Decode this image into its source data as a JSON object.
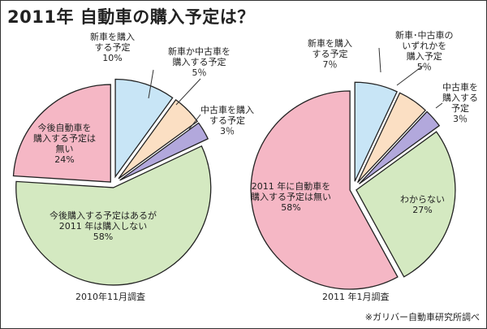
{
  "title": "2011年  自動車の購入予定は？",
  "source": "※ガリバー自動車研究所調べ",
  "colors": {
    "blue": "#c8e5f6",
    "peach": "#fbdfc3",
    "purple": "#b2a8dc",
    "green": "#d4e9c1",
    "pink": "#f5b7c5"
  },
  "chart_data": [
    {
      "type": "pie",
      "caption": "2010年11月調査",
      "slices": [
        {
          "label_lines": [
            "新車を購入",
            "する予定",
            "10%"
          ],
          "value": 10,
          "color": "blue"
        },
        {
          "label_lines": [
            "新車か中古車を",
            "購入する予定",
            "5％"
          ],
          "value": 5,
          "color": "peach"
        },
        {
          "label_lines": [
            "中古車を購入",
            "する予定",
            "3％"
          ],
          "value": 3,
          "color": "purple"
        },
        {
          "label_lines": [
            "今後購入する予定はあるが",
            "2011 年は購入しない",
            "58%"
          ],
          "value": 58,
          "color": "green"
        },
        {
          "label_lines": [
            "今後自動車を",
            "購入する予定は",
            "無い",
            "24%"
          ],
          "value": 24,
          "color": "pink"
        }
      ]
    },
    {
      "type": "pie",
      "caption": "2011 年1月調査",
      "slices": [
        {
          "label_lines": [
            "新車を購入",
            "する予定",
            "7％"
          ],
          "value": 7,
          "color": "blue"
        },
        {
          "label_lines": [
            "新車･中古車の",
            "いずれかを",
            "購入予定",
            "5％"
          ],
          "value": 5,
          "color": "peach"
        },
        {
          "label_lines": [
            "中古車を",
            "購入する",
            "予定",
            "3％"
          ],
          "value": 3,
          "color": "purple"
        },
        {
          "label_lines": [
            "わからない",
            "27%"
          ],
          "value": 27,
          "color": "green"
        },
        {
          "label_lines": [
            "2011 年に自動車を",
            "購入する予定は無い",
            "58%"
          ],
          "value": 58,
          "color": "pink"
        }
      ]
    }
  ]
}
